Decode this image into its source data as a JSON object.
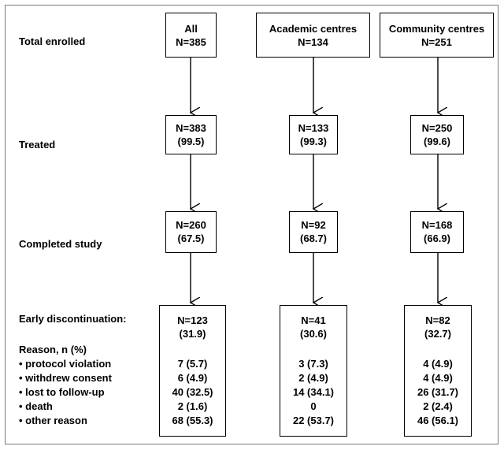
{
  "row_labels": {
    "total_enrolled": "Total enrolled",
    "treated": "Treated",
    "completed_study": "Completed study",
    "early_discontinuation": "Early discontinuation:"
  },
  "reasons": {
    "header": "Reason, n (%)",
    "items": [
      "• protocol violation",
      "• withdrew consent",
      "• lost to follow-up",
      "• death",
      "• other reason"
    ]
  },
  "columns": [
    {
      "name": "All",
      "enrolled": "N=385",
      "treated_n": "N=383",
      "treated_pct": "(99.5)",
      "completed_n": "N=260",
      "completed_pct": "(67.5)",
      "disc_n": "N=123",
      "disc_pct": "(31.9)",
      "reasons": [
        "7 (5.7)",
        "6 (4.9)",
        "40 (32.5)",
        "2 (1.6)",
        "68 (55.3)"
      ]
    },
    {
      "name": "Academic centres",
      "enrolled": "N=134",
      "treated_n": "N=133",
      "treated_pct": "(99.3)",
      "completed_n": "N=92",
      "completed_pct": "(68.7)",
      "disc_n": "N=41",
      "disc_pct": "(30.6)",
      "reasons": [
        "3 (7.3)",
        "2 (4.9)",
        "14 (34.1)",
        "0",
        "22 (53.7)"
      ]
    },
    {
      "name": "Community centres",
      "enrolled": "N=251",
      "treated_n": "N=250",
      "treated_pct": "(99.6)",
      "completed_n": "N=168",
      "completed_pct": "(66.9)",
      "disc_n": "N=82",
      "disc_pct": "(32.7)",
      "reasons": [
        "4 (4.9)",
        "4 (4.9)",
        "26 (31.7)",
        "2 (2.4)",
        "46 (56.1)"
      ]
    }
  ]
}
